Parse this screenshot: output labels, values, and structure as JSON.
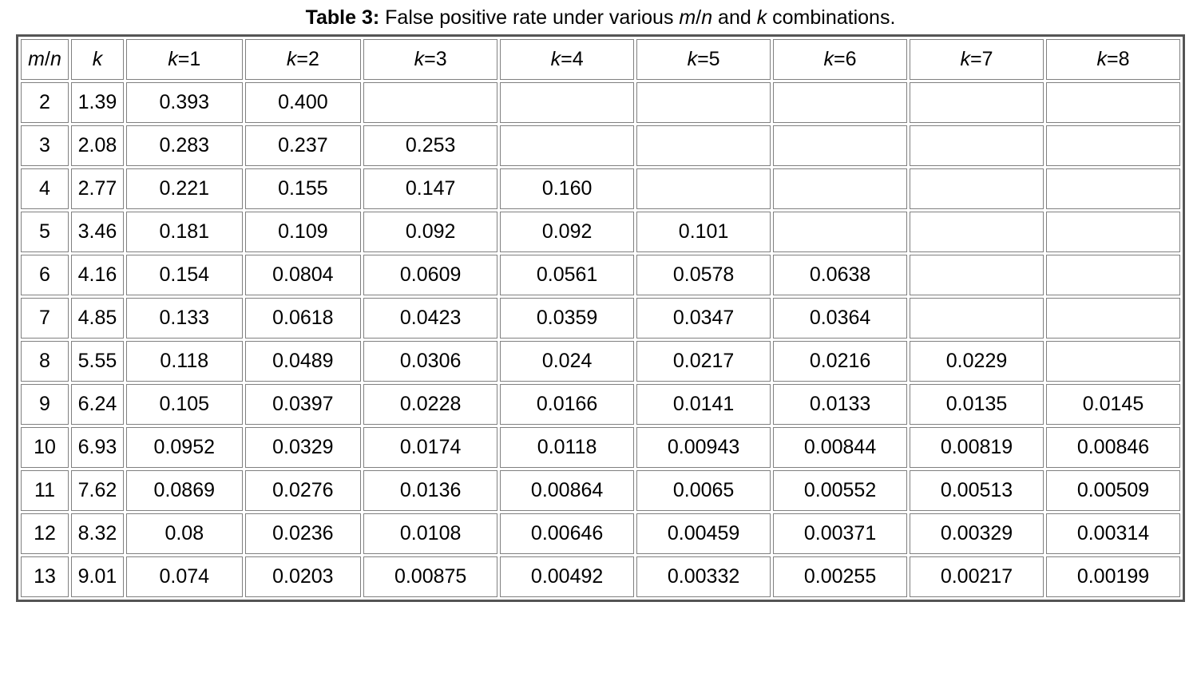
{
  "table": {
    "type": "table",
    "caption_prefix": "Table 3:",
    "caption_text": " False positive rate under various ",
    "caption_var1": "m",
    "caption_slash": "/",
    "caption_var2": "n",
    "caption_mid": " and ",
    "caption_var3": "k",
    "caption_suffix": " combinations.",
    "background_color": "#ffffff",
    "border_color": "#545454",
    "cell_border_color": "#808080",
    "text_color": "#000000",
    "font_size_pt": 19,
    "caption_font_size_pt": 19,
    "header": {
      "col0_var1": "m",
      "col0_slash": "/",
      "col0_var2": "n",
      "col1": "k",
      "kprefix": "k",
      "keq": "=",
      "kvals": [
        "1",
        "2",
        "3",
        "4",
        "5",
        "6",
        "7",
        "8"
      ]
    },
    "rows": [
      {
        "mn": "2",
        "k": "1.39",
        "cells": [
          "0.393",
          "0.400",
          "",
          "",
          "",
          "",
          "",
          ""
        ]
      },
      {
        "mn": "3",
        "k": "2.08",
        "cells": [
          "0.283",
          "0.237",
          "0.253",
          "",
          "",
          "",
          "",
          ""
        ]
      },
      {
        "mn": "4",
        "k": "2.77",
        "cells": [
          "0.221",
          "0.155",
          "0.147",
          "0.160",
          "",
          "",
          "",
          ""
        ]
      },
      {
        "mn": "5",
        "k": "3.46",
        "cells": [
          "0.181",
          "0.109",
          "0.092",
          "0.092",
          "0.101",
          "",
          "",
          ""
        ]
      },
      {
        "mn": "6",
        "k": "4.16",
        "cells": [
          "0.154",
          "0.0804",
          "0.0609",
          "0.0561",
          "0.0578",
          "0.0638",
          "",
          ""
        ]
      },
      {
        "mn": "7",
        "k": "4.85",
        "cells": [
          "0.133",
          "0.0618",
          "0.0423",
          "0.0359",
          "0.0347",
          "0.0364",
          "",
          ""
        ]
      },
      {
        "mn": "8",
        "k": "5.55",
        "cells": [
          "0.118",
          "0.0489",
          "0.0306",
          "0.024",
          "0.0217",
          "0.0216",
          "0.0229",
          ""
        ]
      },
      {
        "mn": "9",
        "k": "6.24",
        "cells": [
          "0.105",
          "0.0397",
          "0.0228",
          "0.0166",
          "0.0141",
          "0.0133",
          "0.0135",
          "0.0145"
        ]
      },
      {
        "mn": "10",
        "k": "6.93",
        "cells": [
          "0.0952",
          "0.0329",
          "0.0174",
          "0.0118",
          "0.00943",
          "0.00844",
          "0.00819",
          "0.00846"
        ]
      },
      {
        "mn": "11",
        "k": "7.62",
        "cells": [
          "0.0869",
          "0.0276",
          "0.0136",
          "0.00864",
          "0.0065",
          "0.00552",
          "0.00513",
          "0.00509"
        ]
      },
      {
        "mn": "12",
        "k": "8.32",
        "cells": [
          "0.08",
          "0.0236",
          "0.0108",
          "0.00646",
          "0.00459",
          "0.00371",
          "0.00329",
          "0.00314"
        ]
      },
      {
        "mn": "13",
        "k": "9.01",
        "cells": [
          "0.074",
          "0.0203",
          "0.00875",
          "0.00492",
          "0.00332",
          "0.00255",
          "0.00217",
          "0.00199"
        ]
      }
    ]
  }
}
